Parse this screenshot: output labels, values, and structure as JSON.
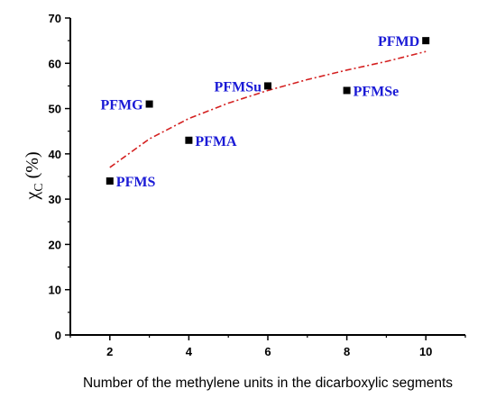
{
  "chart_data": {
    "type": "scatter",
    "title": "",
    "xlabel": "Number of the methylene units in the dicarboxylic segments",
    "ylabel": "χ",
    "ylabel_subscript": "C",
    "ylabel_unit": "(%)",
    "xlim": [
      1,
      11
    ],
    "ylim": [
      0,
      70
    ],
    "x_ticks": [
      2,
      4,
      6,
      8,
      10
    ],
    "y_ticks": [
      0,
      10,
      20,
      30,
      40,
      50,
      60,
      70
    ],
    "grid": false,
    "points": [
      {
        "label": "PFMS",
        "x": 2,
        "y": 34,
        "label_side": "right"
      },
      {
        "label": "PFMG",
        "x": 3,
        "y": 51,
        "label_side": "left"
      },
      {
        "label": "PFMA",
        "x": 4,
        "y": 43,
        "label_side": "right"
      },
      {
        "label": "PFMSu",
        "x": 6,
        "y": 55,
        "label_side": "left"
      },
      {
        "label": "PFMSe",
        "x": 8,
        "y": 54,
        "label_side": "right"
      },
      {
        "label": "PFMD",
        "x": 10,
        "y": 65,
        "label_side": "left"
      }
    ],
    "fit_curve": {
      "style": "dash-dot",
      "color": "#d42020",
      "x": [
        2,
        3,
        4,
        5,
        6,
        7,
        8,
        9,
        10
      ],
      "y": [
        37,
        43.3,
        47.8,
        51.2,
        54.0,
        56.4,
        58.5,
        60.4,
        62.6
      ]
    },
    "marker_color": "#000000",
    "label_color": "#1a1ad6"
  }
}
